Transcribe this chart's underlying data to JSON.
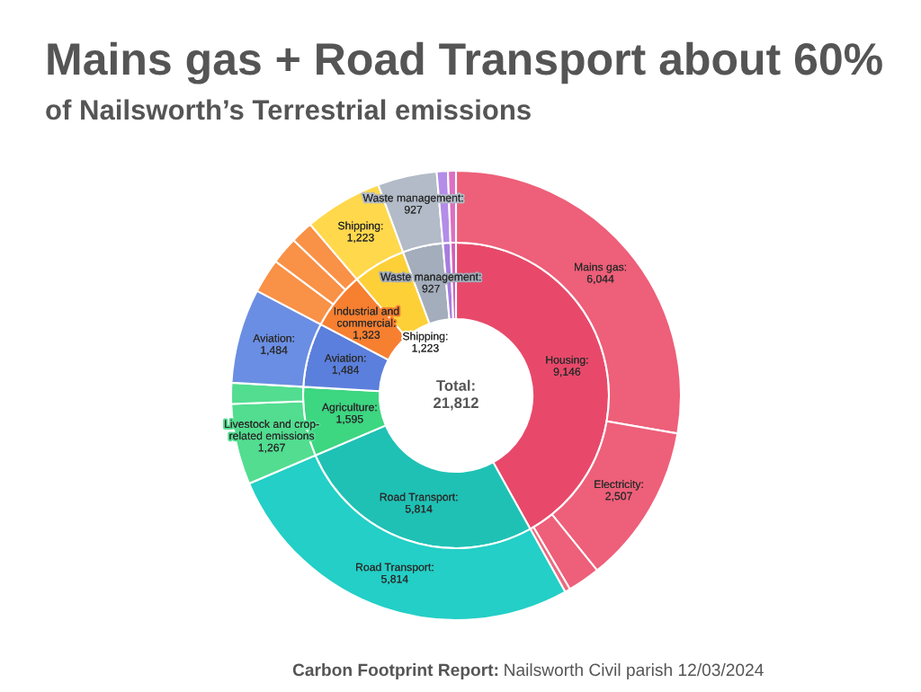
{
  "chart_data": {
    "type": "donut",
    "title": "Mains gas + Road Transport about 60%",
    "subtitle": "of Nailsworth’s Terrestrial emissions",
    "series": [
      {
        "values": [
          9146,
          5814,
          1595,
          1484,
          1323,
          1223,
          927,
          175,
          125
        ],
        "value_labels": [
          "Housing:\n9,146",
          "Road Transport:\n5,814",
          "Agriculture:\n1,595",
          "Aviation:\n1,484",
          "Industrial and\ncommercial:\n1,323",
          "Shipping:\n1,223",
          "Waste management:\n927",
          null,
          null
        ],
        "colors": [
          "#e8496a",
          "#1fc1b5",
          "#3dd681",
          "#5b7fdc",
          "#f77f30",
          "#fdd037",
          "#a3adbb",
          "#a67ddf",
          "#d35fb5"
        ]
      },
      {
        "values": [
          6044,
          2507,
          510,
          85,
          5814,
          1267,
          328,
          1484,
          540,
          430,
          353,
          1223,
          927,
          175,
          125
        ],
        "value_labels": [
          "Mains gas:\n6,044",
          "Electricity:\n2,507",
          null,
          null,
          "Road Transport:\n5,814",
          "Livestock and crop-\nrelated emissions\n1,267",
          null,
          "Aviation:\n1,484",
          null,
          null,
          null,
          "Shipping:\n1,223",
          "Waste management:\n927",
          null,
          null
        ],
        "colors": [
          "#ee5f79",
          "#ee5f79",
          "#ee5f79",
          "#ea6a80",
          "#23cfc6",
          "#52dd90",
          "#52dd90",
          "#6a8ee3",
          "#f99147",
          "#f99147",
          "#f99147",
          "#ffd84c",
          "#b2bbc7",
          "#b38de8",
          "#dc6fc2"
        ]
      }
    ],
    "annotations": [
      "Total:\n21,812",
      "Carbon Footprint Report:",
      "Nailsworth Civil parish 12/03/2024"
    ]
  }
}
